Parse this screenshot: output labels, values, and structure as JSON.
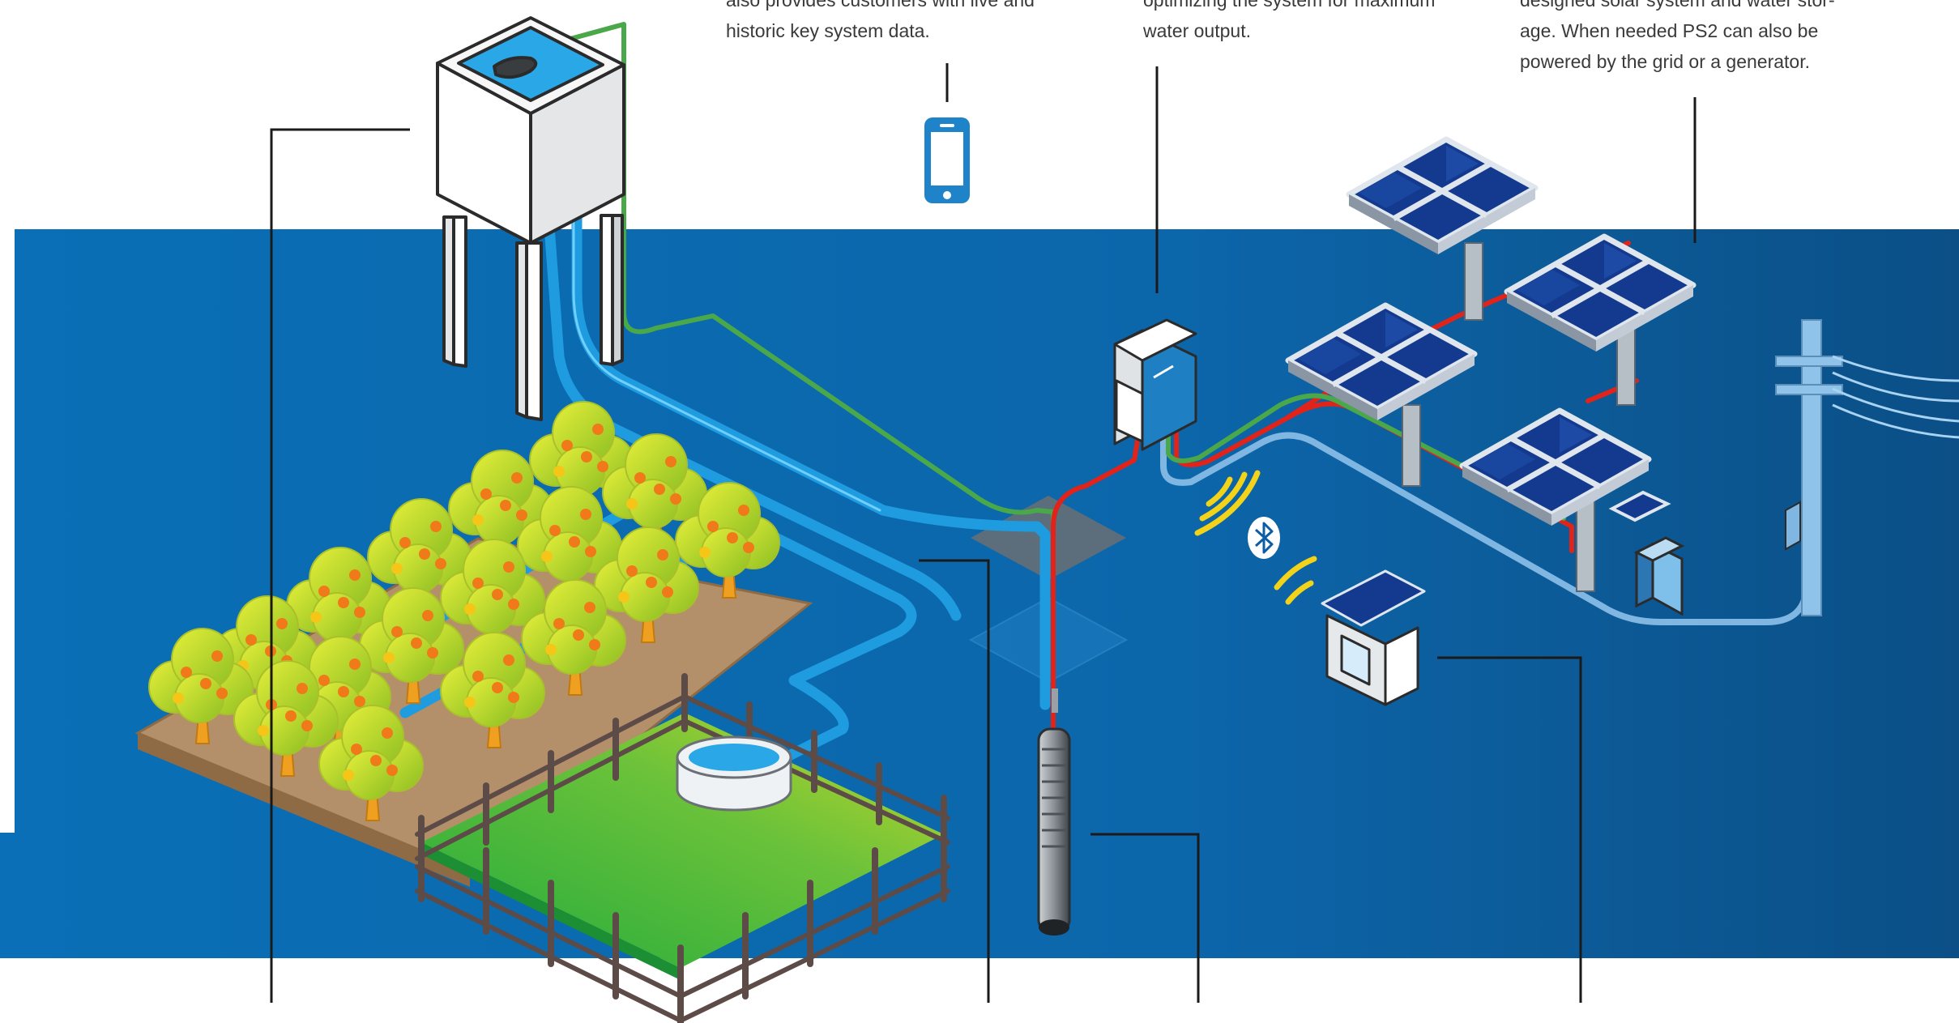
{
  "captions": {
    "app": {
      "lines": [
        "also provides customers with live and",
        "historic key system data."
      ]
    },
    "controller": {
      "lines": [
        "optimizing the system for maximum",
        "water output."
      ]
    },
    "power": {
      "lines": [
        "designed solar system and water stor-",
        "age. When needed PS2 can also be",
        "powered by the grid or a generator."
      ]
    }
  },
  "icons": {
    "smartphone": "smartphone-icon",
    "bluetooth": "bluetooth-icon",
    "wifi": "wireless-signal-icon"
  },
  "colors": {
    "background_band": "#0a6fb3",
    "water_pipe": "#2aa7e6",
    "power_red": "#e2231a",
    "signal_green": "#4aa84a",
    "grid_cable": "#7fb6e2",
    "solar_panel": "#143a8f",
    "phone": "#1e83c8",
    "wireless": "#f3d21a",
    "leader_lines": "#1a1a1a"
  }
}
